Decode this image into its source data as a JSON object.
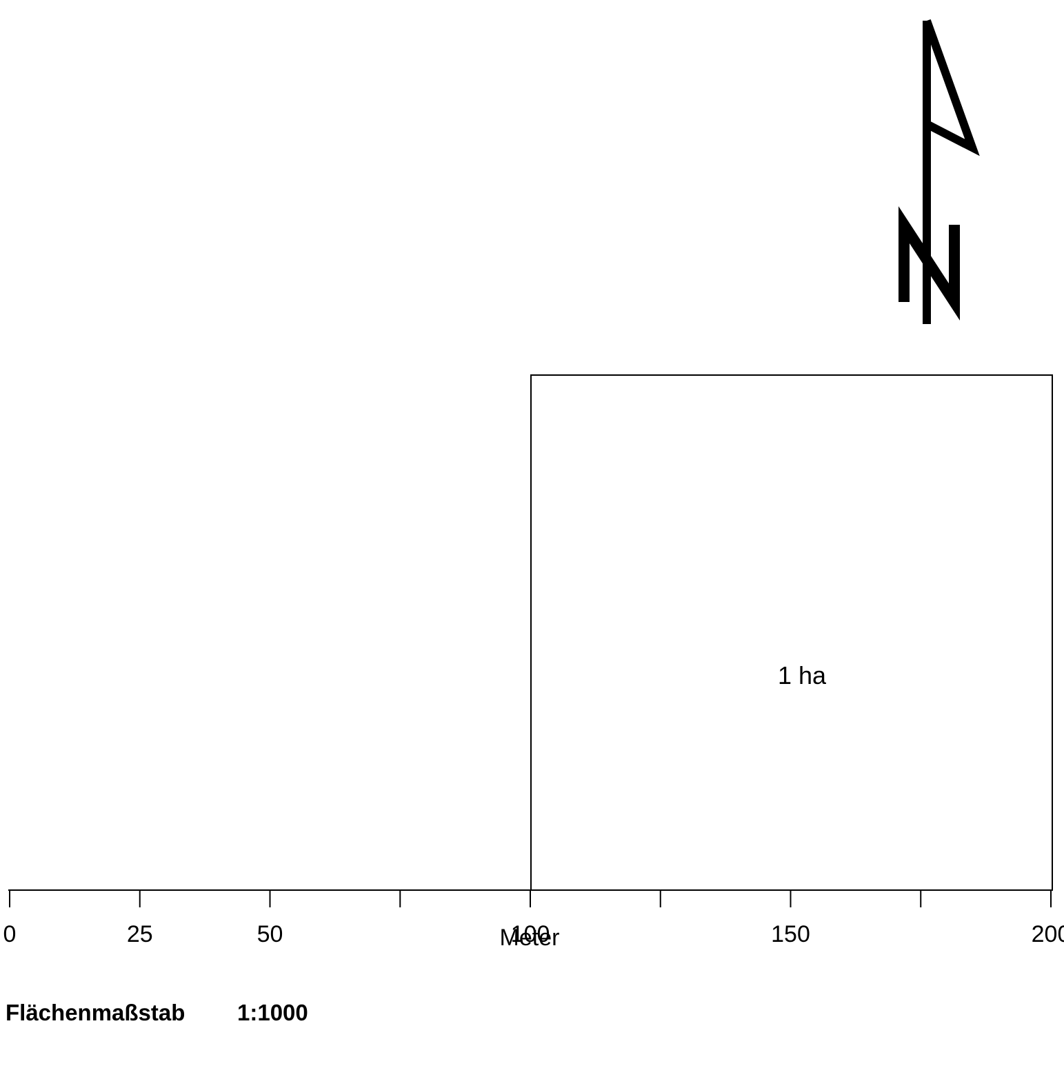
{
  "scale_bar": {
    "unit_label": "Meter",
    "range": [
      0,
      200
    ],
    "major_ticks": [
      0,
      25,
      50,
      100,
      150,
      200
    ],
    "tick_labels": [
      "0",
      "25",
      "50",
      "100",
      "150",
      "200"
    ],
    "minor_ticks": [
      75,
      125,
      175
    ]
  },
  "area_square": {
    "label": "1 ha",
    "x_range": [
      100,
      200
    ]
  },
  "north_arrow": {
    "letter": "N",
    "icon": "north-arrow-icon"
  },
  "caption": {
    "scale_type": "Flächenmaßstab",
    "ratio": "1:1000"
  },
  "colors": {
    "ink": "#000000",
    "background": "#ffffff"
  }
}
